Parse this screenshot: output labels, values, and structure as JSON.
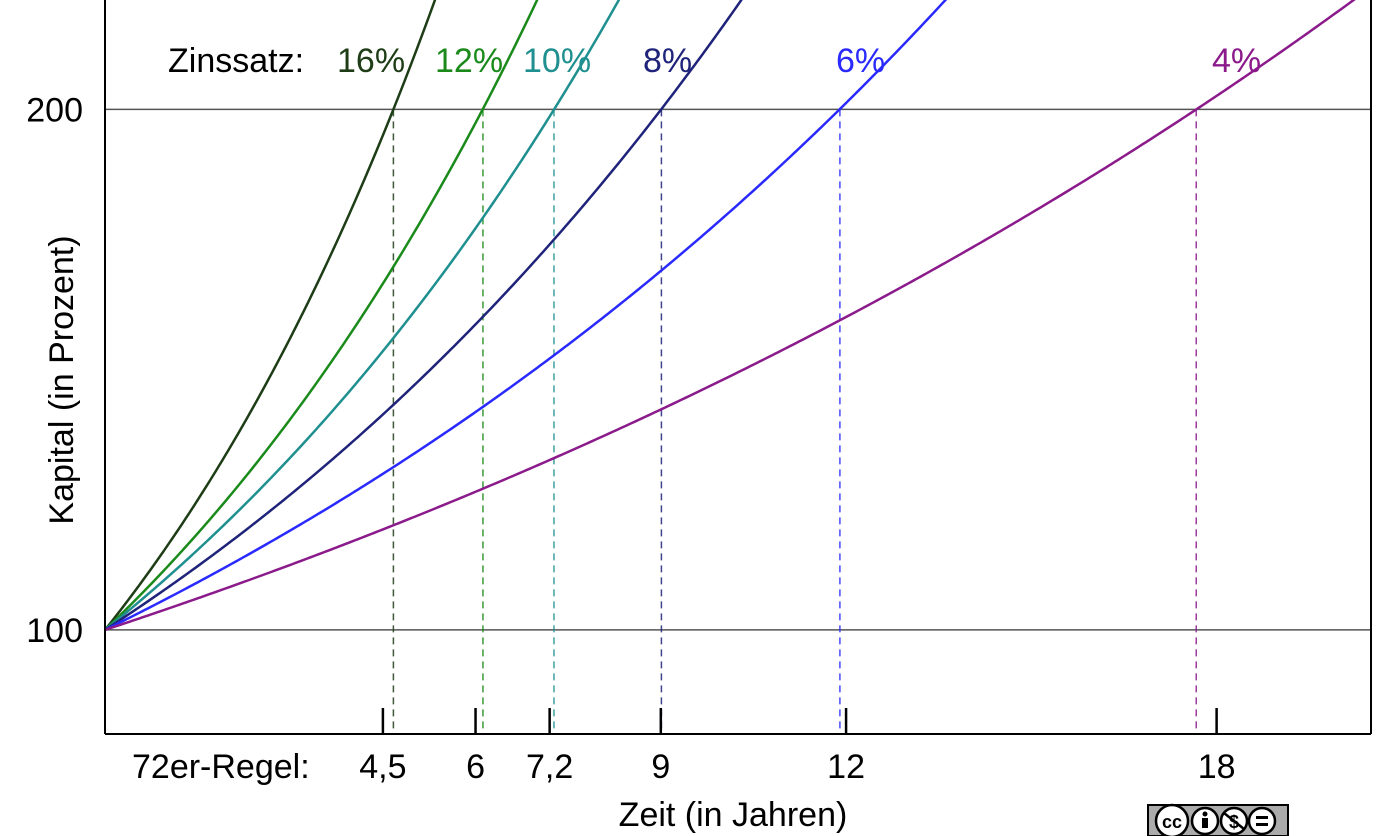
{
  "chart_data": {
    "type": "line",
    "xlabel": "Zeit (in Jahren)",
    "ylabel": "Kapital (in Prozent)",
    "xlim": [
      0,
      20.5
    ],
    "ylim": [
      80,
      221
    ],
    "y_ticks": [
      {
        "value": 100,
        "label": "100"
      },
      {
        "value": 200,
        "label": "200"
      }
    ],
    "grid_lines_y": [
      100,
      200
    ],
    "series_label_prefix": "Zinssatz:",
    "series": [
      {
        "name": "16%",
        "rate": 16,
        "color": "#1e3d17",
        "doubling_time": 4.67
      },
      {
        "name": "12%",
        "rate": 12,
        "color": "#1a8a1a",
        "doubling_time": 6.12
      },
      {
        "name": "10%",
        "rate": 10,
        "color": "#1f8f8f",
        "doubling_time": 7.27
      },
      {
        "name": "8%",
        "rate": 8,
        "color": "#1f237a",
        "doubling_time": 9.01
      },
      {
        "name": "6%",
        "rate": 6,
        "color": "#2a2aff",
        "doubling_time": 11.9
      },
      {
        "name": "4%",
        "rate": 4,
        "color": "#8b1a8b",
        "doubling_time": 17.67
      }
    ],
    "rule72_prefix": "72er-Regel:",
    "rule72_ticks": [
      {
        "value": 4.5,
        "label": "4,5"
      },
      {
        "value": 6,
        "label": "6"
      },
      {
        "value": 7.2,
        "label": "7,2"
      },
      {
        "value": 9,
        "label": "9"
      },
      {
        "value": 12,
        "label": "12"
      },
      {
        "value": 18,
        "label": "18"
      }
    ]
  },
  "license_badge": {
    "icon": "cc-by-nc-nd-icon",
    "text": "cc"
  }
}
